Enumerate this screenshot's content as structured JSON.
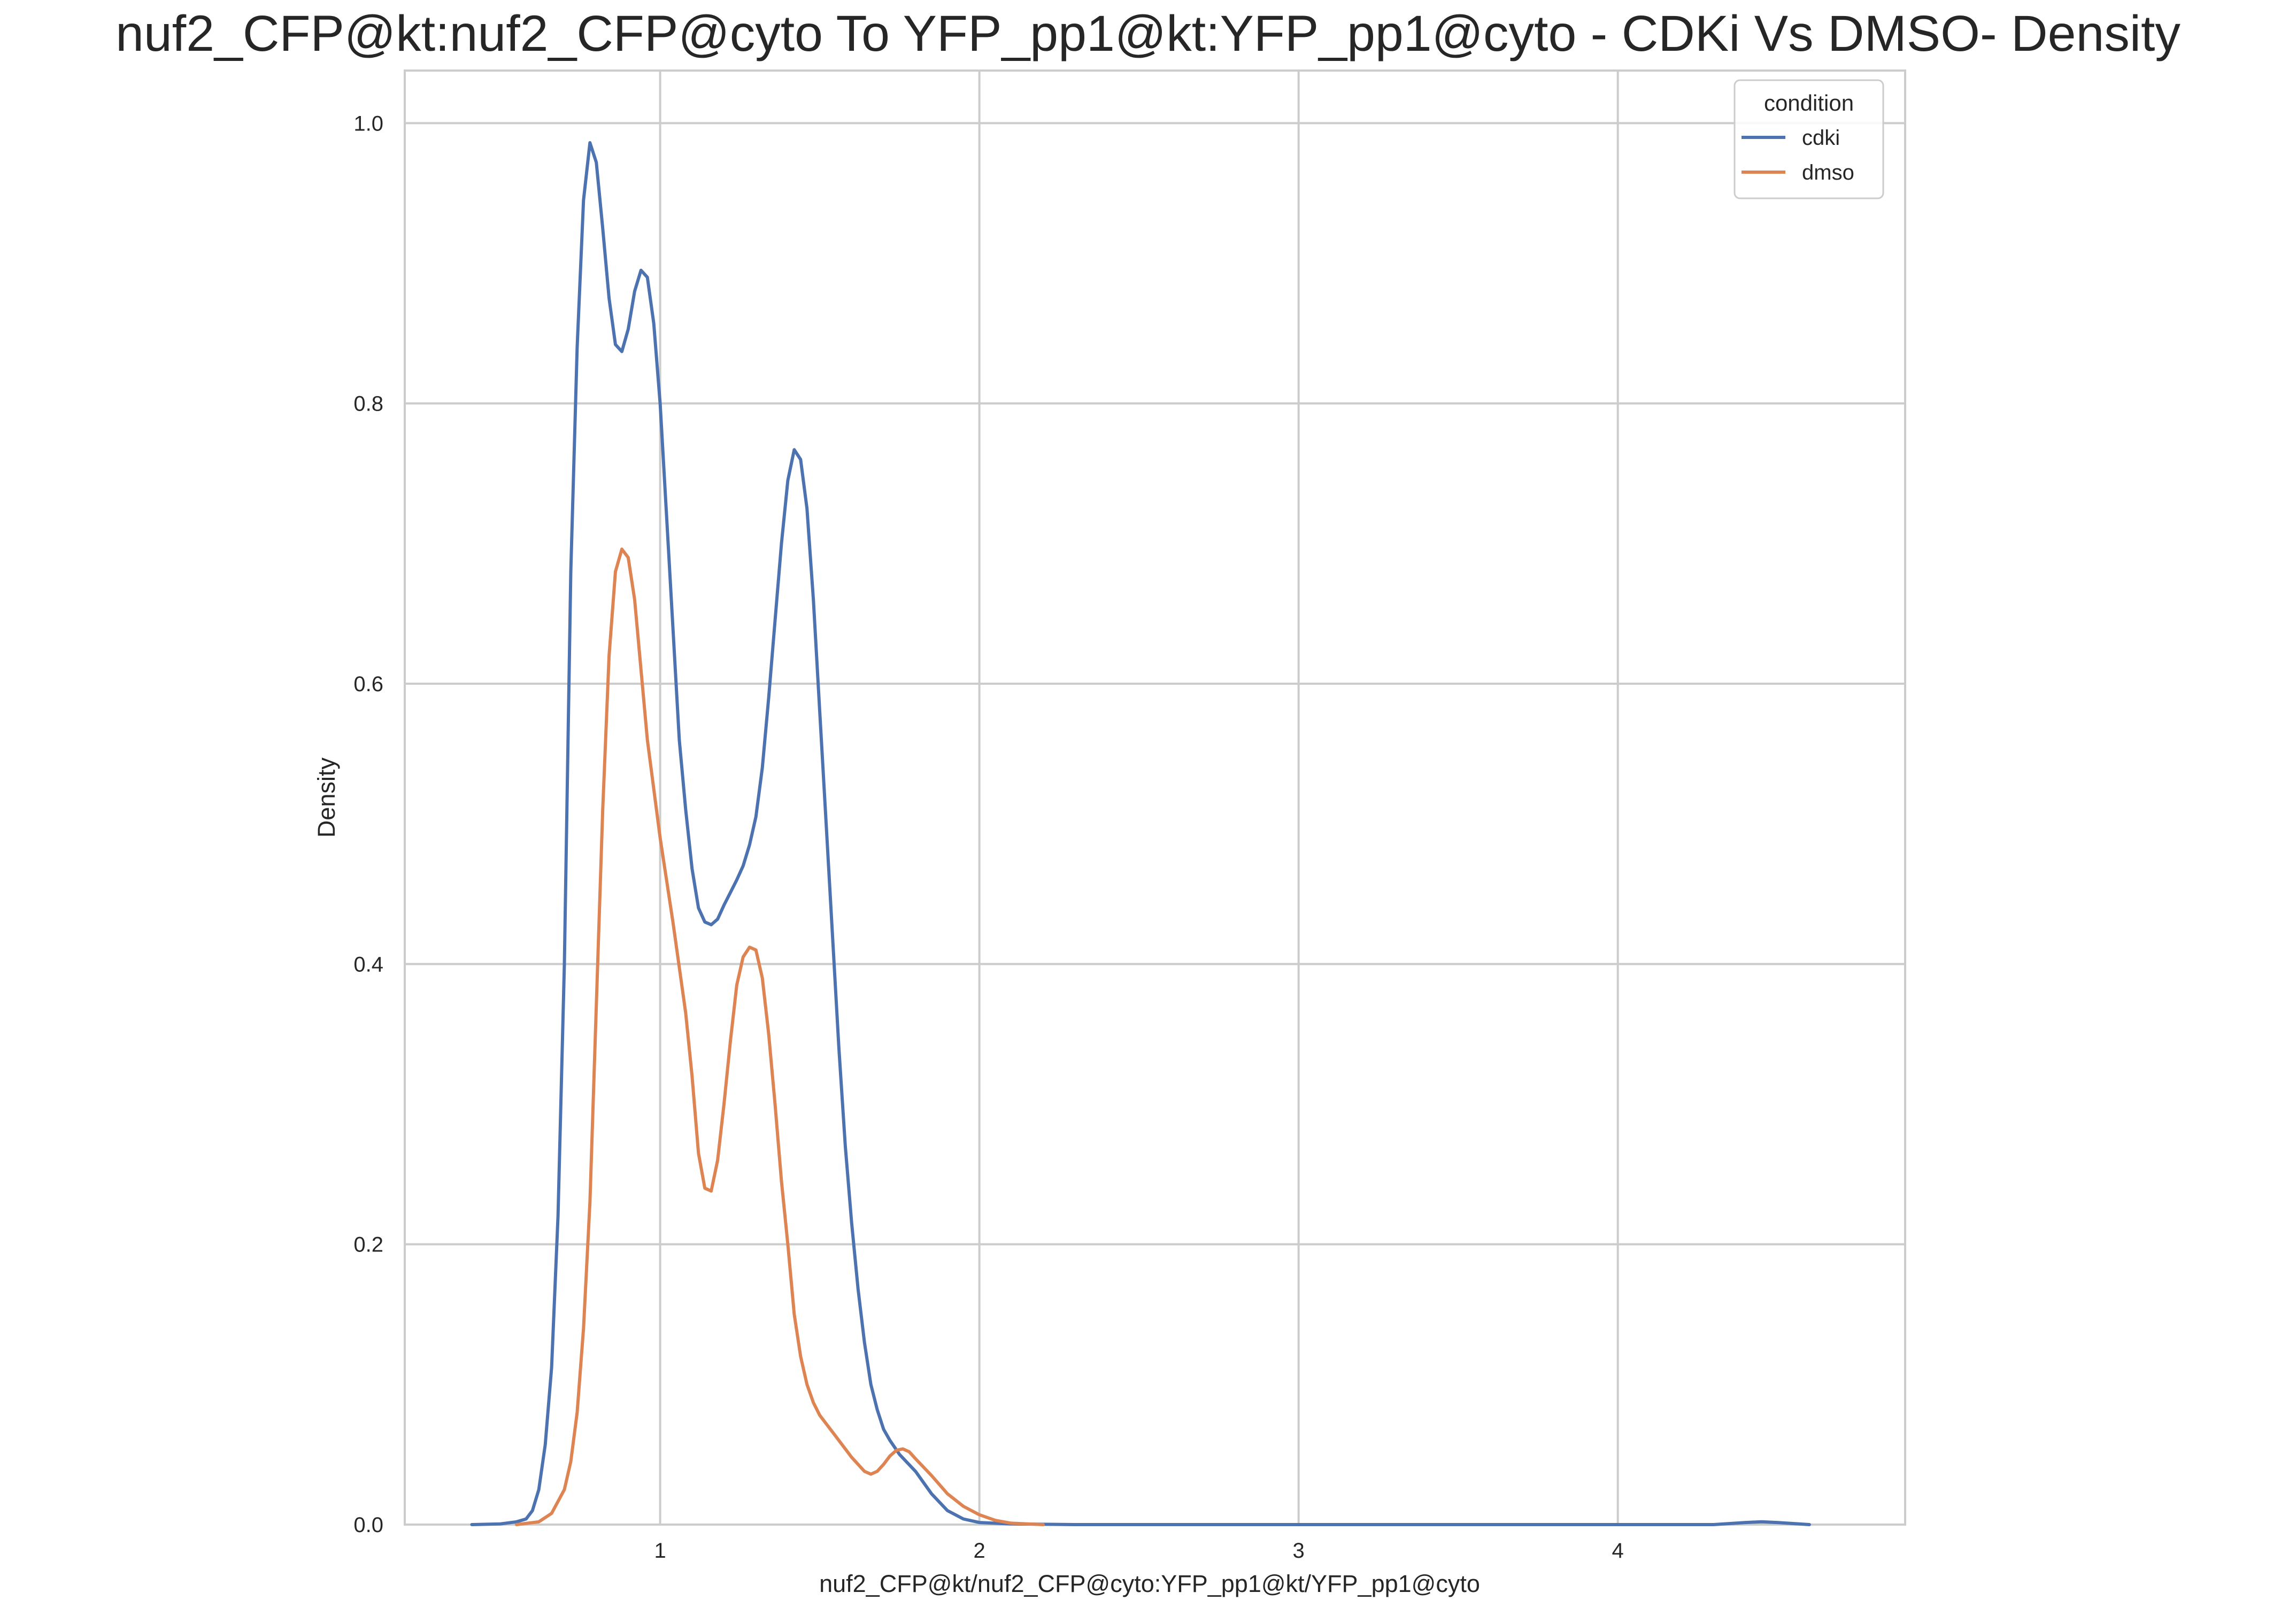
{
  "chart_data": {
    "type": "line",
    "title": "nuf2_CFP@kt:nuf2_CFP@cyto To YFP_pp1@kt:YFP_pp1@cyto - CDKi Vs DMSO- Density",
    "xlabel": "nuf2_CFP@kt/nuf2_CFP@cyto:YFP_pp1@kt/YFP_pp1@cyto",
    "ylabel": "Density",
    "xlim": [
      0.2,
      4.9
    ],
    "ylim": [
      0,
      1.0375
    ],
    "x_ticks": [
      {
        "value": 1,
        "label": "1"
      },
      {
        "value": 2,
        "label": "2"
      },
      {
        "value": 3,
        "label": "3"
      },
      {
        "value": 4,
        "label": "4"
      }
    ],
    "y_ticks": [
      {
        "value": 0.0,
        "label": "0.0"
      },
      {
        "value": 0.2,
        "label": "0.2"
      },
      {
        "value": 0.4,
        "label": "0.4"
      },
      {
        "value": 0.6,
        "label": "0.6"
      },
      {
        "value": 0.8,
        "label": "0.8"
      },
      {
        "value": 1.0,
        "label": "1.0"
      }
    ],
    "grid": true,
    "legend": {
      "title": "condition",
      "position": "upper right"
    },
    "series": [
      {
        "name": "cdki",
        "color": "#4c72b0",
        "points": [
          [
            0.41,
            0.0
          ],
          [
            0.5,
            0.0005
          ],
          [
            0.55,
            0.002
          ],
          [
            0.58,
            0.004
          ],
          [
            0.6,
            0.01
          ],
          [
            0.62,
            0.025
          ],
          [
            0.64,
            0.057
          ],
          [
            0.66,
            0.112
          ],
          [
            0.68,
            0.22
          ],
          [
            0.7,
            0.4
          ],
          [
            0.72,
            0.68
          ],
          [
            0.74,
            0.84
          ],
          [
            0.76,
            0.945
          ],
          [
            0.78,
            0.986
          ],
          [
            0.8,
            0.972
          ],
          [
            0.82,
            0.925
          ],
          [
            0.84,
            0.875
          ],
          [
            0.86,
            0.842
          ],
          [
            0.88,
            0.837
          ],
          [
            0.9,
            0.853
          ],
          [
            0.92,
            0.88
          ],
          [
            0.94,
            0.895
          ],
          [
            0.96,
            0.89
          ],
          [
            0.98,
            0.857
          ],
          [
            1.0,
            0.8
          ],
          [
            1.02,
            0.72
          ],
          [
            1.04,
            0.64
          ],
          [
            1.06,
            0.56
          ],
          [
            1.08,
            0.51
          ],
          [
            1.1,
            0.468
          ],
          [
            1.12,
            0.44
          ],
          [
            1.14,
            0.43
          ],
          [
            1.16,
            0.428
          ],
          [
            1.18,
            0.432
          ],
          [
            1.2,
            0.442
          ],
          [
            1.22,
            0.451
          ],
          [
            1.24,
            0.46
          ],
          [
            1.26,
            0.47
          ],
          [
            1.28,
            0.485
          ],
          [
            1.3,
            0.505
          ],
          [
            1.32,
            0.54
          ],
          [
            1.34,
            0.59
          ],
          [
            1.36,
            0.645
          ],
          [
            1.38,
            0.7
          ],
          [
            1.4,
            0.745
          ],
          [
            1.42,
            0.767
          ],
          [
            1.44,
            0.76
          ],
          [
            1.46,
            0.725
          ],
          [
            1.48,
            0.66
          ],
          [
            1.5,
            0.58
          ],
          [
            1.52,
            0.5
          ],
          [
            1.54,
            0.42
          ],
          [
            1.56,
            0.34
          ],
          [
            1.58,
            0.27
          ],
          [
            1.6,
            0.215
          ],
          [
            1.62,
            0.168
          ],
          [
            1.64,
            0.13
          ],
          [
            1.66,
            0.1
          ],
          [
            1.68,
            0.082
          ],
          [
            1.7,
            0.068
          ],
          [
            1.72,
            0.06
          ],
          [
            1.75,
            0.05
          ],
          [
            1.8,
            0.038
          ],
          [
            1.85,
            0.022
          ],
          [
            1.9,
            0.01
          ],
          [
            1.95,
            0.004
          ],
          [
            2.0,
            0.0015
          ],
          [
            2.1,
            0.0005
          ],
          [
            2.3,
            0.0
          ],
          [
            3.0,
            0.0
          ],
          [
            4.0,
            0.0
          ],
          [
            4.3,
            0.0
          ],
          [
            4.4,
            0.0015
          ],
          [
            4.45,
            0.002
          ],
          [
            4.5,
            0.0015
          ],
          [
            4.6,
            0.0
          ]
        ]
      },
      {
        "name": "dmso",
        "color": "#dd8452",
        "points": [
          [
            0.55,
            0.0
          ],
          [
            0.62,
            0.002
          ],
          [
            0.66,
            0.008
          ],
          [
            0.7,
            0.025
          ],
          [
            0.72,
            0.045
          ],
          [
            0.74,
            0.08
          ],
          [
            0.76,
            0.14
          ],
          [
            0.78,
            0.23
          ],
          [
            0.8,
            0.37
          ],
          [
            0.82,
            0.51
          ],
          [
            0.84,
            0.62
          ],
          [
            0.86,
            0.68
          ],
          [
            0.88,
            0.696
          ],
          [
            0.9,
            0.69
          ],
          [
            0.92,
            0.66
          ],
          [
            0.94,
            0.61
          ],
          [
            0.96,
            0.56
          ],
          [
            1.0,
            0.49
          ],
          [
            1.04,
            0.43
          ],
          [
            1.08,
            0.365
          ],
          [
            1.1,
            0.32
          ],
          [
            1.12,
            0.265
          ],
          [
            1.14,
            0.24
          ],
          [
            1.16,
            0.238
          ],
          [
            1.18,
            0.26
          ],
          [
            1.2,
            0.3
          ],
          [
            1.22,
            0.345
          ],
          [
            1.24,
            0.385
          ],
          [
            1.26,
            0.405
          ],
          [
            1.28,
            0.412
          ],
          [
            1.3,
            0.41
          ],
          [
            1.32,
            0.39
          ],
          [
            1.34,
            0.35
          ],
          [
            1.36,
            0.3
          ],
          [
            1.38,
            0.245
          ],
          [
            1.4,
            0.2
          ],
          [
            1.42,
            0.15
          ],
          [
            1.44,
            0.12
          ],
          [
            1.46,
            0.1
          ],
          [
            1.48,
            0.087
          ],
          [
            1.5,
            0.078
          ],
          [
            1.55,
            0.063
          ],
          [
            1.6,
            0.048
          ],
          [
            1.64,
            0.038
          ],
          [
            1.66,
            0.036
          ],
          [
            1.68,
            0.038
          ],
          [
            1.7,
            0.043
          ],
          [
            1.72,
            0.049
          ],
          [
            1.74,
            0.053
          ],
          [
            1.76,
            0.054
          ],
          [
            1.78,
            0.052
          ],
          [
            1.8,
            0.047
          ],
          [
            1.85,
            0.035
          ],
          [
            1.9,
            0.022
          ],
          [
            1.95,
            0.013
          ],
          [
            2.0,
            0.007
          ],
          [
            2.05,
            0.003
          ],
          [
            2.1,
            0.001
          ],
          [
            2.2,
            0.0
          ]
        ]
      }
    ]
  }
}
